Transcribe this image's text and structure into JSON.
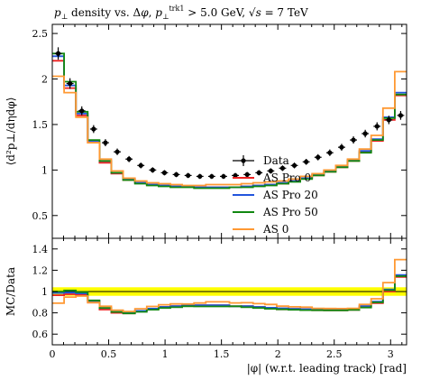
{
  "chart_data": {
    "type": "line",
    "title": "p⊥ density vs. Δφ, p⊥trk1 > 5.0 GeV, √s = 7 TeV",
    "main_panel": {
      "ylabel": "⟨d²p⊥/dηdφ⟩",
      "ylim": [
        0.25,
        2.6
      ],
      "yticks": [
        "0.5",
        "1",
        "1.5",
        "2",
        "2.5"
      ],
      "legend_position": "lower-center"
    },
    "ratio_panel": {
      "ylabel": "MC/Data",
      "ylim": [
        0.5,
        1.5
      ],
      "yticks": [
        "0.6",
        "0.8",
        "1",
        "1.2",
        "1.4"
      ],
      "band": [
        0.96,
        1.04
      ]
    },
    "xlabel": "|φ| (w.r.t. leading track) [rad]",
    "xlim": [
      0,
      3.14159
    ],
    "xticks": [
      "0",
      "0.5",
      "1",
      "1.5",
      "2",
      "2.5",
      "3"
    ],
    "x": [
      0.0524,
      0.1571,
      0.2618,
      0.3665,
      0.4712,
      0.576,
      0.6807,
      0.7854,
      0.8901,
      0.9948,
      1.0996,
      1.2043,
      1.309,
      1.4137,
      1.5184,
      1.6232,
      1.7279,
      1.8326,
      1.9373,
      2.042,
      2.1468,
      2.2515,
      2.3562,
      2.4609,
      2.5656,
      2.6704,
      2.7751,
      2.8798,
      2.9845,
      3.0892
    ],
    "series": [
      {
        "name": "Data",
        "color": "#000000",
        "style": "points",
        "values": [
          2.28,
          1.95,
          1.65,
          1.45,
          1.3,
          1.2,
          1.12,
          1.05,
          1.0,
          0.97,
          0.95,
          0.94,
          0.93,
          0.93,
          0.93,
          0.94,
          0.95,
          0.97,
          0.99,
          1.02,
          1.05,
          1.09,
          1.14,
          1.19,
          1.25,
          1.33,
          1.4,
          1.48,
          1.55,
          1.6
        ]
      },
      {
        "name": "AS Pro 0",
        "color": "#ee2222",
        "style": "step",
        "values": [
          2.2,
          1.9,
          1.6,
          1.3,
          1.08,
          0.96,
          0.89,
          0.86,
          0.84,
          0.83,
          0.82,
          0.82,
          0.81,
          0.81,
          0.81,
          0.81,
          0.82,
          0.83,
          0.84,
          0.85,
          0.88,
          0.91,
          0.94,
          0.98,
          1.03,
          1.1,
          1.2,
          1.32,
          1.55,
          1.82
        ]
      },
      {
        "name": "AS Pro 20",
        "color": "#2255dd",
        "style": "step",
        "values": [
          2.25,
          1.93,
          1.62,
          1.32,
          1.1,
          0.97,
          0.9,
          0.86,
          0.84,
          0.83,
          0.82,
          0.82,
          0.81,
          0.81,
          0.81,
          0.81,
          0.82,
          0.83,
          0.84,
          0.86,
          0.88,
          0.91,
          0.95,
          0.99,
          1.04,
          1.11,
          1.21,
          1.34,
          1.58,
          1.85
        ]
      },
      {
        "name": "AS Pro 50",
        "color": "#118811",
        "style": "step",
        "values": [
          2.28,
          1.97,
          1.64,
          1.33,
          1.1,
          0.97,
          0.89,
          0.85,
          0.83,
          0.82,
          0.81,
          0.81,
          0.8,
          0.8,
          0.8,
          0.81,
          0.81,
          0.82,
          0.83,
          0.85,
          0.87,
          0.9,
          0.94,
          0.98,
          1.03,
          1.1,
          1.19,
          1.33,
          1.57,
          1.83
        ]
      },
      {
        "name": "AS 0",
        "color": "#ff9933",
        "style": "step",
        "values": [
          2.03,
          1.85,
          1.58,
          1.3,
          1.12,
          0.99,
          0.91,
          0.88,
          0.86,
          0.85,
          0.84,
          0.83,
          0.83,
          0.84,
          0.84,
          0.84,
          0.85,
          0.86,
          0.87,
          0.88,
          0.9,
          0.93,
          0.96,
          1.0,
          1.05,
          1.12,
          1.23,
          1.38,
          1.68,
          2.08
        ]
      }
    ],
    "legend": [
      "Data",
      "AS Pro 0",
      "AS Pro 20",
      "AS Pro 50",
      "AS 0"
    ]
  }
}
